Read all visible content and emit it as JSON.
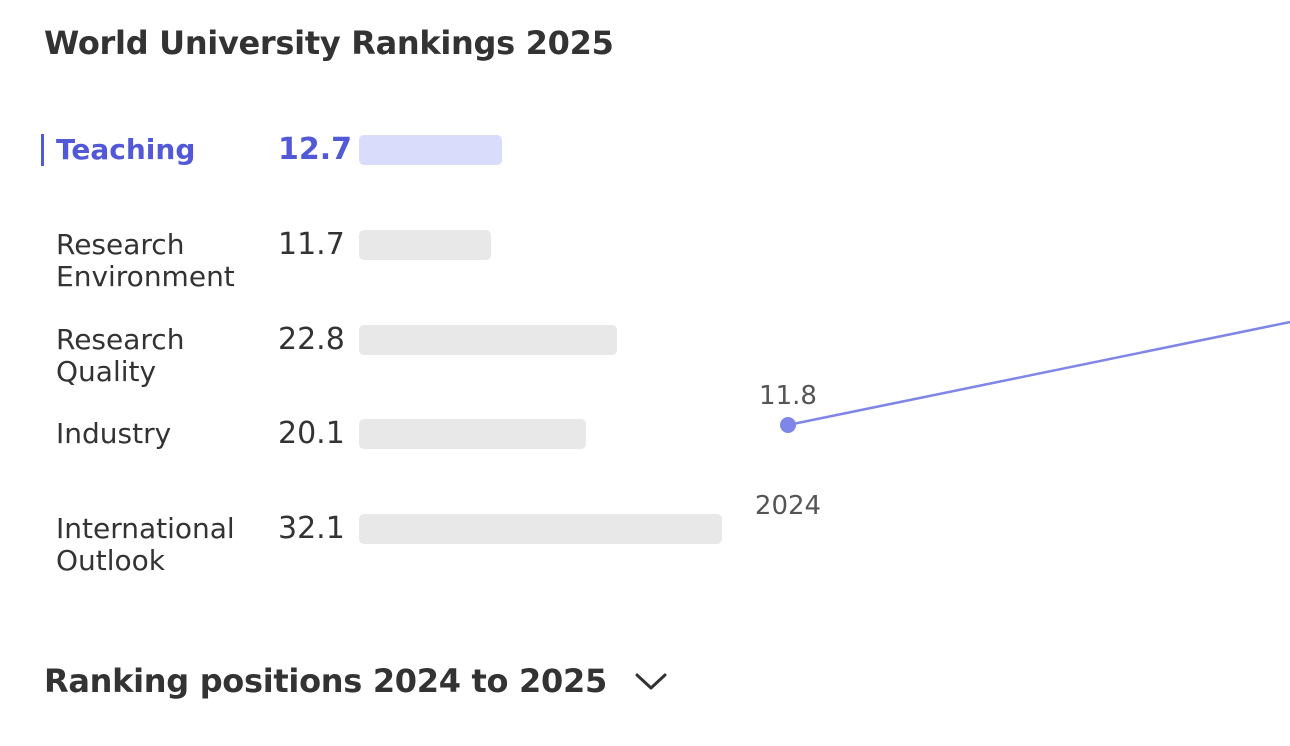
{
  "header": {
    "title": "World University Rankings 2025"
  },
  "metrics": [
    {
      "label": "Teaching",
      "value": "12.7",
      "active": true
    },
    {
      "label": "Research Environment",
      "value": "11.7",
      "active": false
    },
    {
      "label": "Research Quality",
      "value": "22.8",
      "active": false
    },
    {
      "label": "Industry",
      "value": "20.1",
      "active": false
    },
    {
      "label": "International Outlook",
      "value": "32.1",
      "active": false
    }
  ],
  "chart_data": {
    "type": "line",
    "series": [
      {
        "x": [
          "2024"
        ],
        "values": [
          11.8
        ]
      }
    ],
    "point_labels": [
      "11.8"
    ],
    "x_tick_labels": [
      "2024"
    ],
    "line_color": "#7f86e8",
    "point_color": "#7f86e8"
  },
  "section": {
    "title": "Ranking positions 2024 to 2025",
    "toggle_icon": "chevron-down-icon"
  },
  "colors": {
    "accent": "#5159d6",
    "active_bar": "#d9dcfb",
    "inactive_bar": "#e8e8e8"
  }
}
